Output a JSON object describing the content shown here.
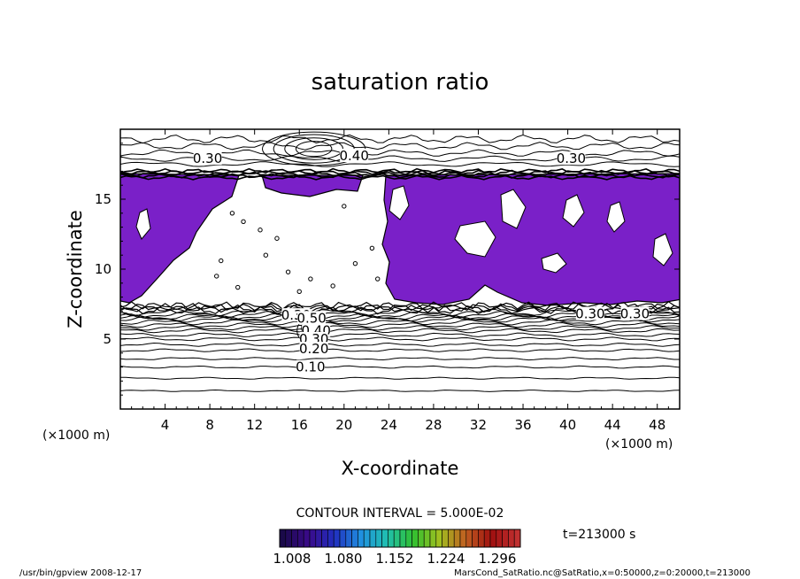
{
  "chart_data": {
    "type": "contour",
    "title": "saturation ratio",
    "xlabel": "X-coordinate",
    "ylabel": "Z-coordinate",
    "x_unit": "(×1000 m)",
    "z_unit": "(×1000 m)",
    "xlim": [
      0,
      50
    ],
    "ylim": [
      0,
      20
    ],
    "x_ticks": [
      4,
      8,
      12,
      16,
      20,
      24,
      28,
      32,
      36,
      40,
      44,
      48
    ],
    "y_ticks": [
      5,
      10,
      15
    ],
    "contour_labels": [
      {
        "text": "0.30",
        "x": 7.8,
        "z": 17.9
      },
      {
        "text": "0.40",
        "x": 20.9,
        "z": 18.1
      },
      {
        "text": "0.30",
        "x": 40.3,
        "z": 17.9
      },
      {
        "text": "0.30",
        "x": 15.7,
        "z": 6.7
      },
      {
        "text": "0.30",
        "x": 42.0,
        "z": 6.8
      },
      {
        "text": "0.30",
        "x": 46.0,
        "z": 6.8
      },
      {
        "text": "0.50",
        "x": 17.1,
        "z": 6.5
      },
      {
        "text": "0.40",
        "x": 17.5,
        "z": 5.6
      },
      {
        "text": "0.30",
        "x": 17.3,
        "z": 5.0
      },
      {
        "text": "0.20",
        "x": 17.3,
        "z": 4.3
      },
      {
        "text": "0.10",
        "x": 17.0,
        "z": 3.0
      }
    ],
    "contour_interval": "CONTOUR INTERVAL = 5.000E-02",
    "colorbar": {
      "ticks": [
        "1.008",
        "1.080",
        "1.152",
        "1.224",
        "1.296"
      ],
      "colors": [
        "#1a0a4a",
        "#3a0a8a",
        "#2030c0",
        "#2090e0",
        "#20c0b0",
        "#30c030",
        "#a0c020",
        "#c06020",
        "#a01010",
        "#c03030"
      ]
    },
    "shaded_color": "#7a20c8",
    "time": "t=213000 s"
  },
  "footer": {
    "left": "/usr/bin/gpview  2008-12-17",
    "right": "MarsCond_SatRatio.nc@SatRatio,x=0:50000,z=0:20000,t=213000"
  }
}
